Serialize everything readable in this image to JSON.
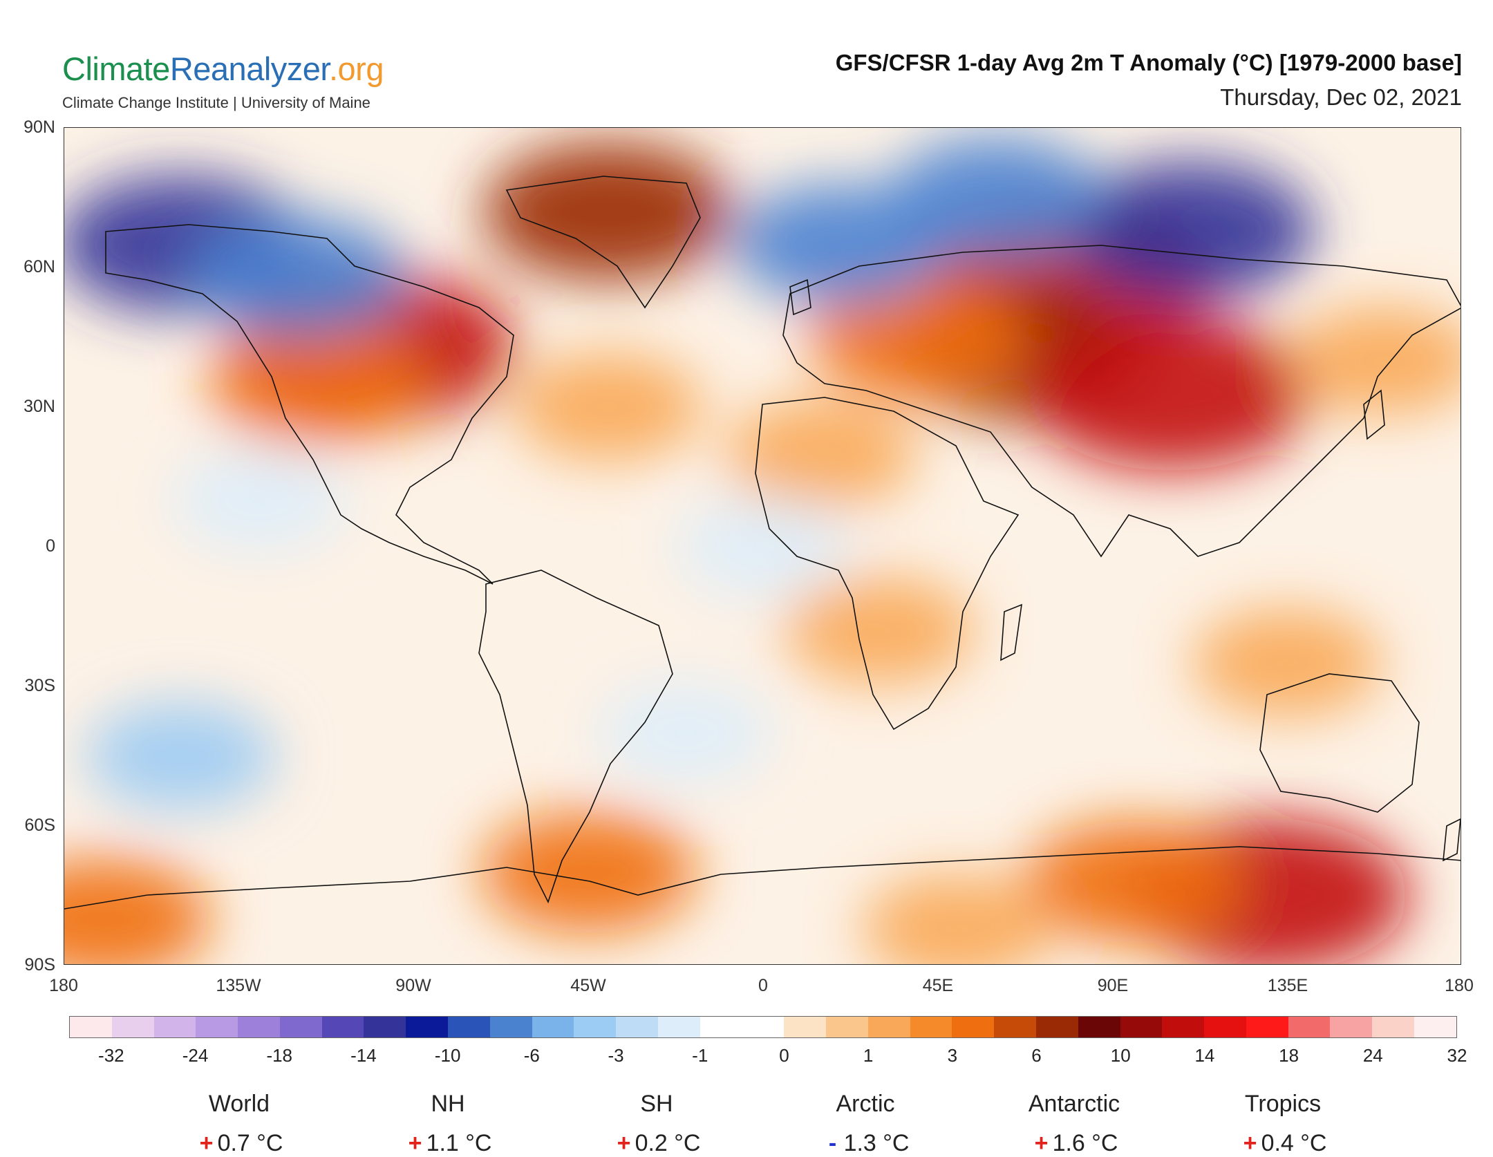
{
  "header": {
    "brand": {
      "part1": "Climate",
      "part2": "Reanalyzer",
      "part3": ".org",
      "color1": "#1a8f4e",
      "color2": "#2a6fb5",
      "color3": "#f29a2e"
    },
    "subtitle": "Climate Change Institute | University of Maine",
    "title": "GFS/CFSR 1-day Avg 2m T Anomaly (°C) [1979-2000 base]",
    "date": "Thursday, Dec 02, 2021"
  },
  "map": {
    "lat_labels": [
      "90N",
      "60N",
      "30N",
      "0",
      "30S",
      "60S",
      "90S"
    ],
    "lon_labels": [
      "180",
      "135W",
      "90W",
      "45W",
      "0",
      "45E",
      "90E",
      "135E",
      "180"
    ],
    "anomaly_patches": [
      {
        "lon": -100,
        "lat": 43,
        "value": 14
      },
      {
        "lon": -115,
        "lat": 35,
        "value": 6
      },
      {
        "lon": -40,
        "lat": 72,
        "value": 10
      },
      {
        "lon": 80,
        "lat": 58,
        "value": 14
      },
      {
        "lon": 65,
        "lat": 42,
        "value": 10
      },
      {
        "lon": 105,
        "lat": 33,
        "value": 14
      },
      {
        "lon": 40,
        "lat": 45,
        "value": 6
      },
      {
        "lon": 15,
        "lat": 20,
        "value": 3
      },
      {
        "lon": 30,
        "lat": -18,
        "value": 3
      },
      {
        "lon": 135,
        "lat": -25,
        "value": 3
      },
      {
        "lon": 160,
        "lat": 40,
        "value": 3
      },
      {
        "lon": -40,
        "lat": 30,
        "value": 3
      },
      {
        "lon": 130,
        "lat": -75,
        "value": 14
      },
      {
        "lon": 95,
        "lat": -72,
        "value": 6
      },
      {
        "lon": -45,
        "lat": -70,
        "value": 6
      },
      {
        "lon": -170,
        "lat": -80,
        "value": 6
      },
      {
        "lon": 50,
        "lat": -82,
        "value": 3
      },
      {
        "lon": -150,
        "lat": 65,
        "value": -10
      },
      {
        "lon": -120,
        "lat": 58,
        "value": -6
      },
      {
        "lon": 110,
        "lat": 68,
        "value": -10
      },
      {
        "lon": 20,
        "lat": 65,
        "value": -6
      },
      {
        "lon": 60,
        "lat": 75,
        "value": -6
      },
      {
        "lon": -150,
        "lat": -45,
        "value": -3
      },
      {
        "lon": -20,
        "lat": -40,
        "value": -1
      },
      {
        "lon": 0,
        "lat": 0,
        "value": -1
      },
      {
        "lon": -130,
        "lat": 10,
        "value": -1
      }
    ]
  },
  "colorbar": {
    "colors": [
      "#fde8ec",
      "#e9cfee",
      "#d2b4ea",
      "#b89ae4",
      "#9d80da",
      "#7f69ce",
      "#5548b6",
      "#333399",
      "#0a1a99",
      "#2a54b8",
      "#4a82d0",
      "#7ab2ea",
      "#9ccbf3",
      "#bfdcf6",
      "#ddedfa",
      "#ffffff",
      "#ffffff",
      "#fde3c5",
      "#fbc68c",
      "#f8a858",
      "#f58a2a",
      "#ef6f10",
      "#c64b08",
      "#9a2a05",
      "#6b0606",
      "#960a0a",
      "#c20d0d",
      "#e51010",
      "#ff1a1a",
      "#f26a6a",
      "#f7a3a3",
      "#fad2c8",
      "#fdeff0"
    ],
    "labels": [
      "-32",
      "-24",
      "-18",
      "-14",
      "-10",
      "-6",
      "-3",
      "-1",
      "0",
      "1",
      "3",
      "6",
      "10",
      "14",
      "18",
      "24",
      "32"
    ]
  },
  "stats": [
    {
      "name": "World",
      "sign": "+",
      "value": "0.7 °C"
    },
    {
      "name": "NH",
      "sign": "+",
      "value": "1.1 °C"
    },
    {
      "name": "SH",
      "sign": "+",
      "value": "0.2 °C"
    },
    {
      "name": "Arctic",
      "sign": "-",
      "value": "1.3 °C"
    },
    {
      "name": "Antarctic",
      "sign": "+",
      "value": "1.6 °C"
    },
    {
      "name": "Tropics",
      "sign": "+",
      "value": "0.4 °C"
    }
  ],
  "colors": {
    "positive_sign": "#e3221b",
    "negative_sign": "#2233cc"
  }
}
